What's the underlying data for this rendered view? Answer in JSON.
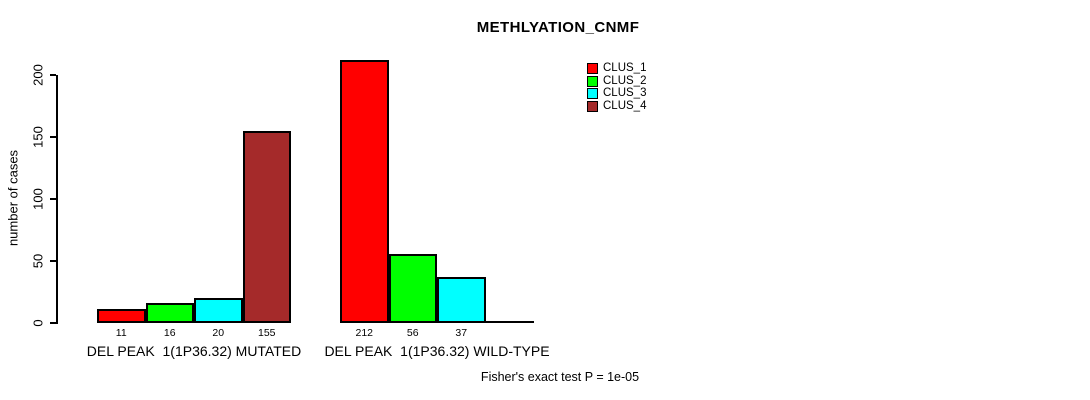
{
  "title": "METHLYATION_CNMF",
  "annotation": "Fisher's exact test P = 1e-05",
  "chart_data": {
    "type": "bar",
    "title": "METHLYATION_CNMF",
    "xlabel": "",
    "ylabel": "number of cases",
    "ylim": [
      0,
      212
    ],
    "yticks": [
      0,
      50,
      100,
      150,
      200
    ],
    "grid": false,
    "legend_position": "top-right",
    "categories": [
      "DEL PEAK  1(1P36.32) MUTATED",
      "DEL PEAK  1(1P36.32) WILD-TYPE"
    ],
    "series": [
      {
        "name": "CLUS_1",
        "color": "#FF0000",
        "values": [
          11,
          212
        ]
      },
      {
        "name": "CLUS_2",
        "color": "#00FF00",
        "values": [
          16,
          56
        ]
      },
      {
        "name": "CLUS_3",
        "color": "#00FFFF",
        "values": [
          20,
          37
        ]
      },
      {
        "name": "CLUS_4",
        "color": "#A52A2A",
        "values": [
          155,
          0
        ]
      }
    ],
    "bar_value_labels": [
      [
        "11",
        "16",
        "20",
        "155"
      ],
      [
        "212",
        "56",
        "37",
        ""
      ]
    ],
    "annotation": "Fisher's exact test P = 1e-05"
  }
}
